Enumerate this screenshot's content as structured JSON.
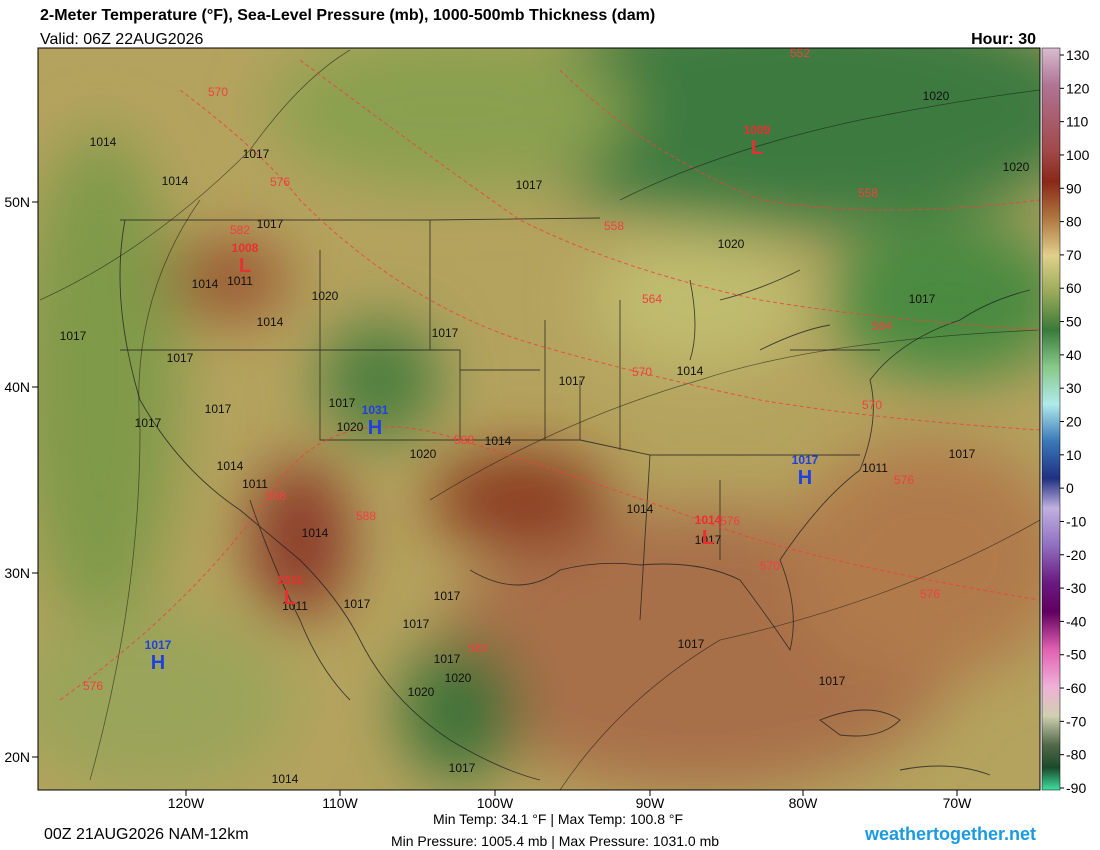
{
  "header": {
    "title": "2-Meter Temperature (°F), Sea-Level Pressure (mb), 1000-500mb Thickness (dam)",
    "valid": "Valid: 06Z 22AUG2026",
    "hour": "Hour: 30"
  },
  "colorbar": {
    "ticks": [
      130,
      120,
      110,
      100,
      90,
      80,
      70,
      60,
      50,
      40,
      30,
      20,
      10,
      0,
      -10,
      -20,
      -30,
      -40,
      -50,
      -60,
      -70,
      -80,
      -90
    ]
  },
  "latitude_labels": [
    "50N",
    "40N",
    "30N",
    "20N"
  ],
  "longitude_labels": [
    "120W",
    "110W",
    "100W",
    "90W",
    "80W",
    "70W"
  ],
  "pressure_centers": [
    {
      "letter": "L",
      "value": "1009"
    },
    {
      "letter": "L",
      "value": "1008"
    },
    {
      "letter": "H",
      "value": "1031"
    },
    {
      "letter": "H",
      "value": "1017"
    },
    {
      "letter": "L",
      "value": "1014"
    },
    {
      "letter": "L",
      "value": "1011"
    },
    {
      "letter": "H",
      "value": "1017"
    }
  ],
  "isobar_labels": [
    "1014",
    "1017",
    "1014",
    "1017",
    "1014",
    "1011",
    "1020",
    "1014",
    "1017",
    "1017",
    "1017",
    "1017",
    "1017",
    "1020",
    "1017",
    "1014",
    "1011",
    "1020",
    "1014",
    "1017",
    "1014",
    "1014",
    "1011",
    "1017",
    "1017",
    "1017",
    "1017",
    "1020",
    "1020",
    "1017",
    "1014",
    "1014",
    "1017",
    "1017",
    "1017",
    "1017",
    "1011",
    "1020",
    "1017",
    "1020",
    "1020",
    "1017"
  ],
  "thickness_labels": [
    "570",
    "576",
    "582",
    "558",
    "564",
    "570",
    "588",
    "588",
    "588",
    "576",
    "570",
    "576",
    "576",
    "570",
    "564",
    "558",
    "552",
    "582",
    "576"
  ],
  "footer": {
    "run": "00Z 21AUG2026 NAM-12km",
    "temps": "Min Temp:  34.1 °F | Max Temp: 100.8 °F",
    "pressures": "Min Pressure: 1005.4 mb | Max Pressure: 1031.0 mb",
    "site": "weathertogether.net"
  }
}
